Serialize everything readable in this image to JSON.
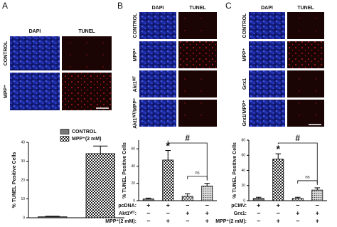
{
  "panels": [
    {
      "label": "A",
      "columns": [
        "DAPI",
        "TUNEL"
      ],
      "rows": [
        "CONTROL",
        "MPP⁺"
      ]
    },
    {
      "label": "B",
      "columns": [
        "DAPI",
        "TUNEL"
      ],
      "rows": [
        "CONTROL",
        "MPP⁺",
        "Akt1ᵂᵀ",
        "Akt1ᵂᵀ/MPP⁺"
      ]
    },
    {
      "label": "C",
      "columns": [
        "DAPI",
        "TUNEL"
      ],
      "rows": [
        "CONTROL",
        "MPP⁺",
        "Grx1",
        "Grx1/MPP⁺"
      ]
    }
  ],
  "chart_data": [
    {
      "type": "bar",
      "ylabel": "% TUNEL Positive Cells",
      "ylim": [
        0,
        40
      ],
      "yticks": [
        0,
        10,
        20,
        30,
        40
      ],
      "legend": "top",
      "series": [
        {
          "name": "CONTROL",
          "fill": "gray",
          "values": [
            0.5
          ],
          "errors": [
            0.3
          ]
        },
        {
          "name": "MPP⁺(2 mM)",
          "fill": "check",
          "values": [
            34
          ],
          "errors": [
            4
          ]
        }
      ]
    },
    {
      "type": "bar",
      "ylabel": "% TUNEL Positive Cells",
      "ylim": [
        0,
        70
      ],
      "yticks": [
        0,
        20,
        40,
        60
      ],
      "values": [
        2,
        47,
        5,
        17
      ],
      "errors": [
        1,
        11,
        3,
        3
      ],
      "fills": [
        "gray",
        "check",
        "hatch",
        "dots"
      ],
      "conditions": [
        {
          "label": "pcDNA:",
          "signs": [
            "+",
            "+",
            "−",
            "−"
          ]
        },
        {
          "label": "Akt1ᵂᵀ:",
          "signs": [
            "−",
            "−",
            "+",
            "+"
          ]
        },
        {
          "label": "MPP⁺(2 mM):",
          "signs": [
            "−",
            "+",
            "−",
            "+"
          ]
        }
      ],
      "annotations": [
        "*",
        "#",
        "ns"
      ]
    },
    {
      "type": "bar",
      "ylabel": "% TUNEL Positive Cells",
      "ylim": [
        0,
        80
      ],
      "yticks": [
        0,
        20,
        40,
        60,
        80
      ],
      "values": [
        3,
        55,
        3,
        14
      ],
      "errors": [
        1.5,
        7,
        1.5,
        3
      ],
      "fills": [
        "gray",
        "check",
        "hatch",
        "dots"
      ],
      "conditions": [
        {
          "label": "pCMV:",
          "signs": [
            "+",
            "+",
            "−",
            "−"
          ]
        },
        {
          "label": "Grx1:",
          "signs": [
            "−",
            "−",
            "+",
            "+"
          ]
        },
        {
          "label": "MPP⁺(2 mM):",
          "signs": [
            "−",
            "+",
            "−",
            "+"
          ]
        }
      ],
      "annotations": [
        "*",
        "#",
        "ns"
      ]
    }
  ]
}
